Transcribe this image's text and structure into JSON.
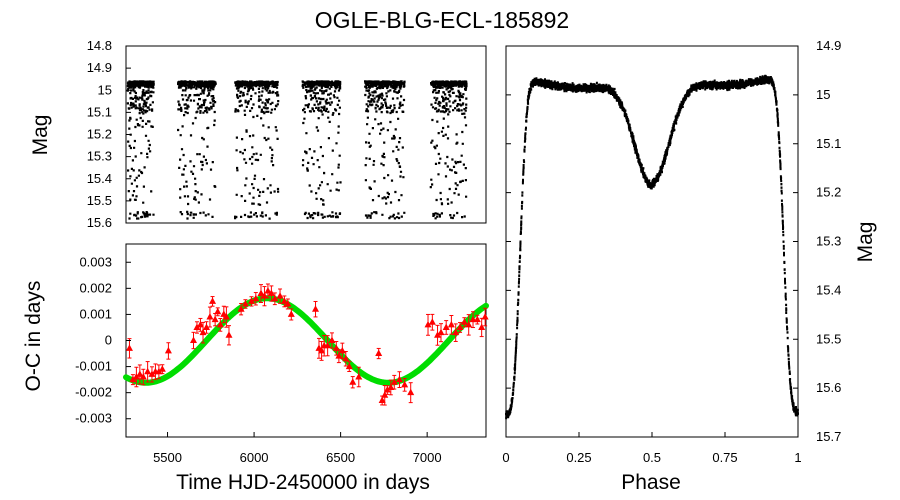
{
  "title": "OGLE-BLG-ECL-185892",
  "chart_data": [
    {
      "id": "lightcurve_time",
      "type": "scatter",
      "xlabel": "",
      "ylabel": "Mag",
      "xlim": [
        5260,
        7340
      ],
      "ylim": [
        15.6,
        14.8
      ],
      "yticks": [
        "14.8",
        "14.9",
        "15",
        "15.1",
        "15.2",
        "15.3",
        "15.4",
        "15.5",
        "15.6"
      ],
      "seasons": [
        {
          "start": 5270,
          "end": 5420
        },
        {
          "start": 5560,
          "end": 5780
        },
        {
          "start": 5890,
          "end": 6140
        },
        {
          "start": 6280,
          "end": 6500
        },
        {
          "start": 6640,
          "end": 6870
        },
        {
          "start": 7020,
          "end": 7230
        }
      ],
      "mag_max": 14.94,
      "mag_secondary_min": 15.18,
      "mag_primary_min": 15.56
    },
    {
      "id": "eclipse_timing",
      "type": "scatter",
      "xlabel": "Time HJD-2450000 in days",
      "ylabel": "O-C in days",
      "xlim": [
        5260,
        7340
      ],
      "ylim": [
        -0.0037,
        0.0037
      ],
      "xticks": [
        "5500",
        "6000",
        "6500",
        "7000"
      ],
      "yticks": [
        "-0.003",
        "-0.002",
        "-0.001",
        "0",
        "0.001",
        "0.002",
        "0.003"
      ],
      "points": [
        {
          "x": 5280,
          "y": -0.0003
        },
        {
          "x": 5300,
          "y": -0.0015
        },
        {
          "x": 5320,
          "y": -0.0014
        },
        {
          "x": 5340,
          "y": -0.0013
        },
        {
          "x": 5360,
          "y": -0.0014
        },
        {
          "x": 5385,
          "y": -0.0012
        },
        {
          "x": 5410,
          "y": -0.0013
        },
        {
          "x": 5430,
          "y": -0.0012
        },
        {
          "x": 5450,
          "y": -0.0012
        },
        {
          "x": 5470,
          "y": -0.0011
        },
        {
          "x": 5505,
          "y": -0.0004
        },
        {
          "x": 5650,
          "y": 0.0
        },
        {
          "x": 5670,
          "y": 0.0005
        },
        {
          "x": 5690,
          "y": 0.0006
        },
        {
          "x": 5705,
          "y": 0.0003
        },
        {
          "x": 5725,
          "y": 0.0005
        },
        {
          "x": 5745,
          "y": 0.0009
        },
        {
          "x": 5760,
          "y": 0.0015
        },
        {
          "x": 5775,
          "y": 0.0008
        },
        {
          "x": 5790,
          "y": 0.0011
        },
        {
          "x": 5805,
          "y": 0.0006
        },
        {
          "x": 5825,
          "y": 0.001
        },
        {
          "x": 5840,
          "y": 0.0009
        },
        {
          "x": 5855,
          "y": 0.0002
        },
        {
          "x": 5925,
          "y": 0.0012
        },
        {
          "x": 5950,
          "y": 0.0014
        },
        {
          "x": 5985,
          "y": 0.0015
        },
        {
          "x": 6010,
          "y": 0.0016
        },
        {
          "x": 6040,
          "y": 0.0018
        },
        {
          "x": 6060,
          "y": 0.0017
        },
        {
          "x": 6080,
          "y": 0.0019
        },
        {
          "x": 6100,
          "y": 0.0018
        },
        {
          "x": 6120,
          "y": 0.0016
        },
        {
          "x": 6150,
          "y": 0.0017
        },
        {
          "x": 6175,
          "y": 0.0015
        },
        {
          "x": 6195,
          "y": 0.0014
        },
        {
          "x": 6215,
          "y": 0.001
        },
        {
          "x": 6355,
          "y": 0.0012
        },
        {
          "x": 6375,
          "y": -0.0003
        },
        {
          "x": 6390,
          "y": -0.0004
        },
        {
          "x": 6405,
          "y": -0.0002
        },
        {
          "x": 6425,
          "y": -0.0002
        },
        {
          "x": 6450,
          "y": 0.0
        },
        {
          "x": 6475,
          "y": -0.0003
        },
        {
          "x": 6490,
          "y": -0.0006
        },
        {
          "x": 6510,
          "y": -0.0004
        },
        {
          "x": 6530,
          "y": -0.0007
        },
        {
          "x": 6550,
          "y": -0.001
        },
        {
          "x": 6570,
          "y": -0.0016
        },
        {
          "x": 6605,
          "y": -0.0014
        },
        {
          "x": 6720,
          "y": -0.0005
        },
        {
          "x": 6740,
          "y": -0.0023
        },
        {
          "x": 6755,
          "y": -0.0021
        },
        {
          "x": 6770,
          "y": -0.0019
        },
        {
          "x": 6790,
          "y": -0.0018
        },
        {
          "x": 6810,
          "y": -0.0016
        },
        {
          "x": 6840,
          "y": -0.0015
        },
        {
          "x": 6870,
          "y": -0.0017
        },
        {
          "x": 6905,
          "y": -0.002
        },
        {
          "x": 7005,
          "y": 0.0006
        },
        {
          "x": 7030,
          "y": 0.0007
        },
        {
          "x": 7060,
          "y": 0.0002
        },
        {
          "x": 7080,
          "y": 0.0003
        },
        {
          "x": 7110,
          "y": 0.0005
        },
        {
          "x": 7140,
          "y": 0.0006
        },
        {
          "x": 7165,
          "y": 0.0003
        },
        {
          "x": 7190,
          "y": 0.0005
        },
        {
          "x": 7215,
          "y": 0.0007
        },
        {
          "x": 7240,
          "y": 0.0006
        },
        {
          "x": 7265,
          "y": 0.0008
        },
        {
          "x": 7290,
          "y": 0.0008
        },
        {
          "x": 7315,
          "y": 0.0005
        },
        {
          "x": 7335,
          "y": 0.0009
        }
      ],
      "fit": {
        "amplitude": 0.00162,
        "period": 1400,
        "t_zero": 6075,
        "color": "#00dd00"
      },
      "marker_color": "#ff0000"
    },
    {
      "id": "phased_lightcurve",
      "type": "scatter",
      "xlabel": "Phase",
      "ylabel": "Mag",
      "xlim": [
        0,
        1
      ],
      "ylim": [
        15.7,
        14.9
      ],
      "xticks": [
        "0",
        "0.25",
        "0.5",
        "0.75",
        "1"
      ],
      "yticks": [
        "14.9",
        "15",
        "15.1",
        "15.2",
        "15.3",
        "15.4",
        "15.5",
        "15.6",
        "15.7"
      ],
      "model": {
        "max_mag": 14.96,
        "secondary_min_mag": 15.18,
        "primary_min_mag": 15.65
      }
    }
  ]
}
